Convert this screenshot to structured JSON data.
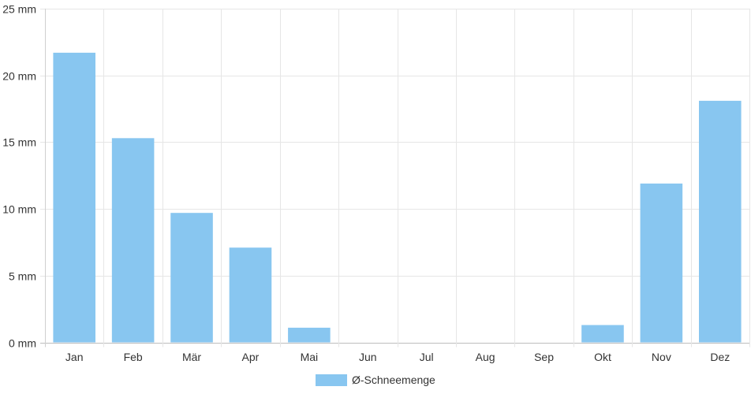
{
  "chart_data": {
    "type": "bar",
    "categories": [
      "Jan",
      "Feb",
      "Mär",
      "Apr",
      "Mai",
      "Jun",
      "Jul",
      "Aug",
      "Sep",
      "Okt",
      "Nov",
      "Dez"
    ],
    "series": [
      {
        "name": "Ø-Schneemenge",
        "values": [
          21.7,
          15.3,
          9.7,
          7.1,
          1.1,
          0,
          0,
          0,
          0,
          1.3,
          11.9,
          18.1
        ],
        "color": "#88c6f0"
      }
    ],
    "ylim": [
      0,
      25
    ],
    "yticks": [
      0,
      5,
      10,
      15,
      20,
      25
    ],
    "ytick_labels": [
      "0 mm",
      "5 mm",
      "10 mm",
      "15 mm",
      "20 mm",
      "25 mm"
    ],
    "grid": true,
    "legend_position": "bottom-center",
    "title": "",
    "xlabel": "",
    "ylabel": ""
  }
}
